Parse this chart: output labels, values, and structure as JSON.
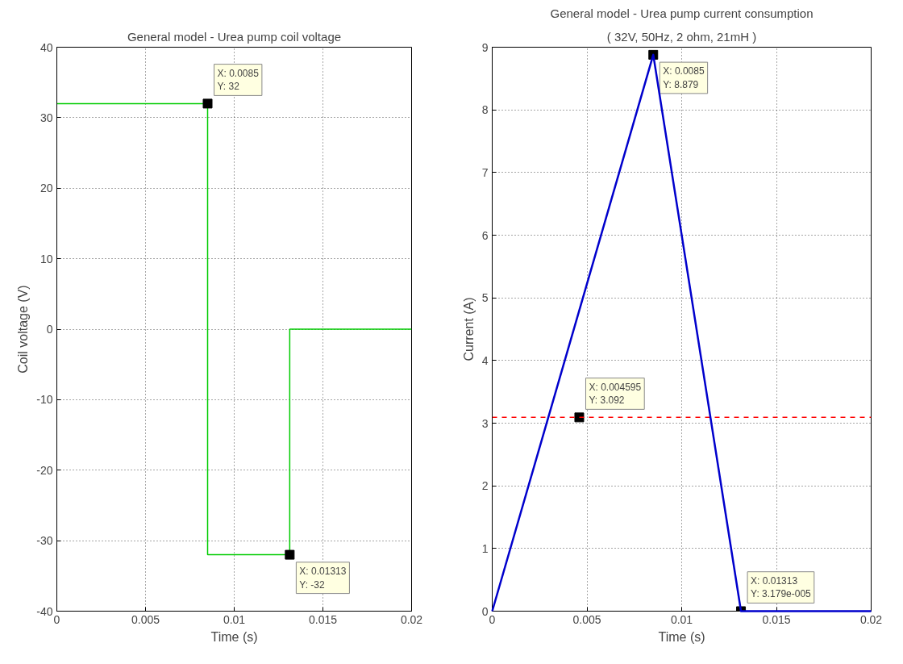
{
  "chart_data": [
    {
      "type": "step",
      "title": "General model - Urea pump coil voltage",
      "xlabel": "Time (s)",
      "ylabel": "Coil voltage (V)",
      "series": [
        {
          "color": "#00cc00",
          "x": [
            0,
            0.0085,
            0.01313,
            0.02
          ],
          "values": [
            32,
            -32,
            0,
            0
          ]
        },
        {
          "type": "scatter",
          "color": "#000000",
          "marker": "square",
          "x": [
            0.0085,
            0.01313
          ],
          "values": [
            32,
            -32
          ]
        }
      ],
      "annotations": [
        {
          "text": "X: 0.0085\nY: 32",
          "x": 0.0085,
          "y": 32
        },
        {
          "text": "X: 0.01313\nY: -32",
          "x": 0.01313,
          "y": -32
        }
      ],
      "xlim": [
        0,
        0.02
      ],
      "xticks": [
        0,
        0.005,
        0.01,
        0.015,
        0.02
      ],
      "ylim": [
        -40,
        40
      ],
      "yticks": [
        -40,
        -30,
        -20,
        -10,
        0,
        10,
        20,
        30,
        40
      ],
      "grid": true
    },
    {
      "type": "line",
      "title": "General model - Urea pump current consumption",
      "subtitle": "( 32V, 50Hz, 2 ohm, 21mH )",
      "xlabel": "Time (s)",
      "ylabel": "Current (A)",
      "series": [
        {
          "color": "#0000cc",
          "x": [
            0,
            0.0085,
            0.01313,
            0.02
          ],
          "values": [
            0,
            8.879,
            3.179e-05,
            0
          ]
        },
        {
          "type": "scatter",
          "color": "#000000",
          "marker": "square",
          "x": [
            0.0085,
            0.004595,
            0.01313
          ],
          "values": [
            8.879,
            3.092,
            3.179e-05
          ]
        }
      ],
      "ref_lines": [
        {
          "axis": "y",
          "value": 3.092,
          "color": "#ff0000",
          "line_style": "dashed"
        }
      ],
      "annotations": [
        {
          "text": "X: 0.0085\nY: 8.879",
          "x": 0.0085,
          "y": 8.879
        },
        {
          "text": "X: 0.004595\nY: 3.092",
          "x": 0.004595,
          "y": 3.092
        },
        {
          "text": "X: 0.01313\nY: 3.179e-005",
          "x": 0.01313,
          "y": 3.179e-05
        }
      ],
      "xlim": [
        0,
        0.02
      ],
      "xticks": [
        0,
        0.005,
        0.01,
        0.015,
        0.02
      ],
      "ylim": [
        0,
        9
      ],
      "yticks": [
        0,
        1,
        2,
        3,
        4,
        5,
        6,
        7,
        8,
        9
      ],
      "grid": true
    }
  ]
}
